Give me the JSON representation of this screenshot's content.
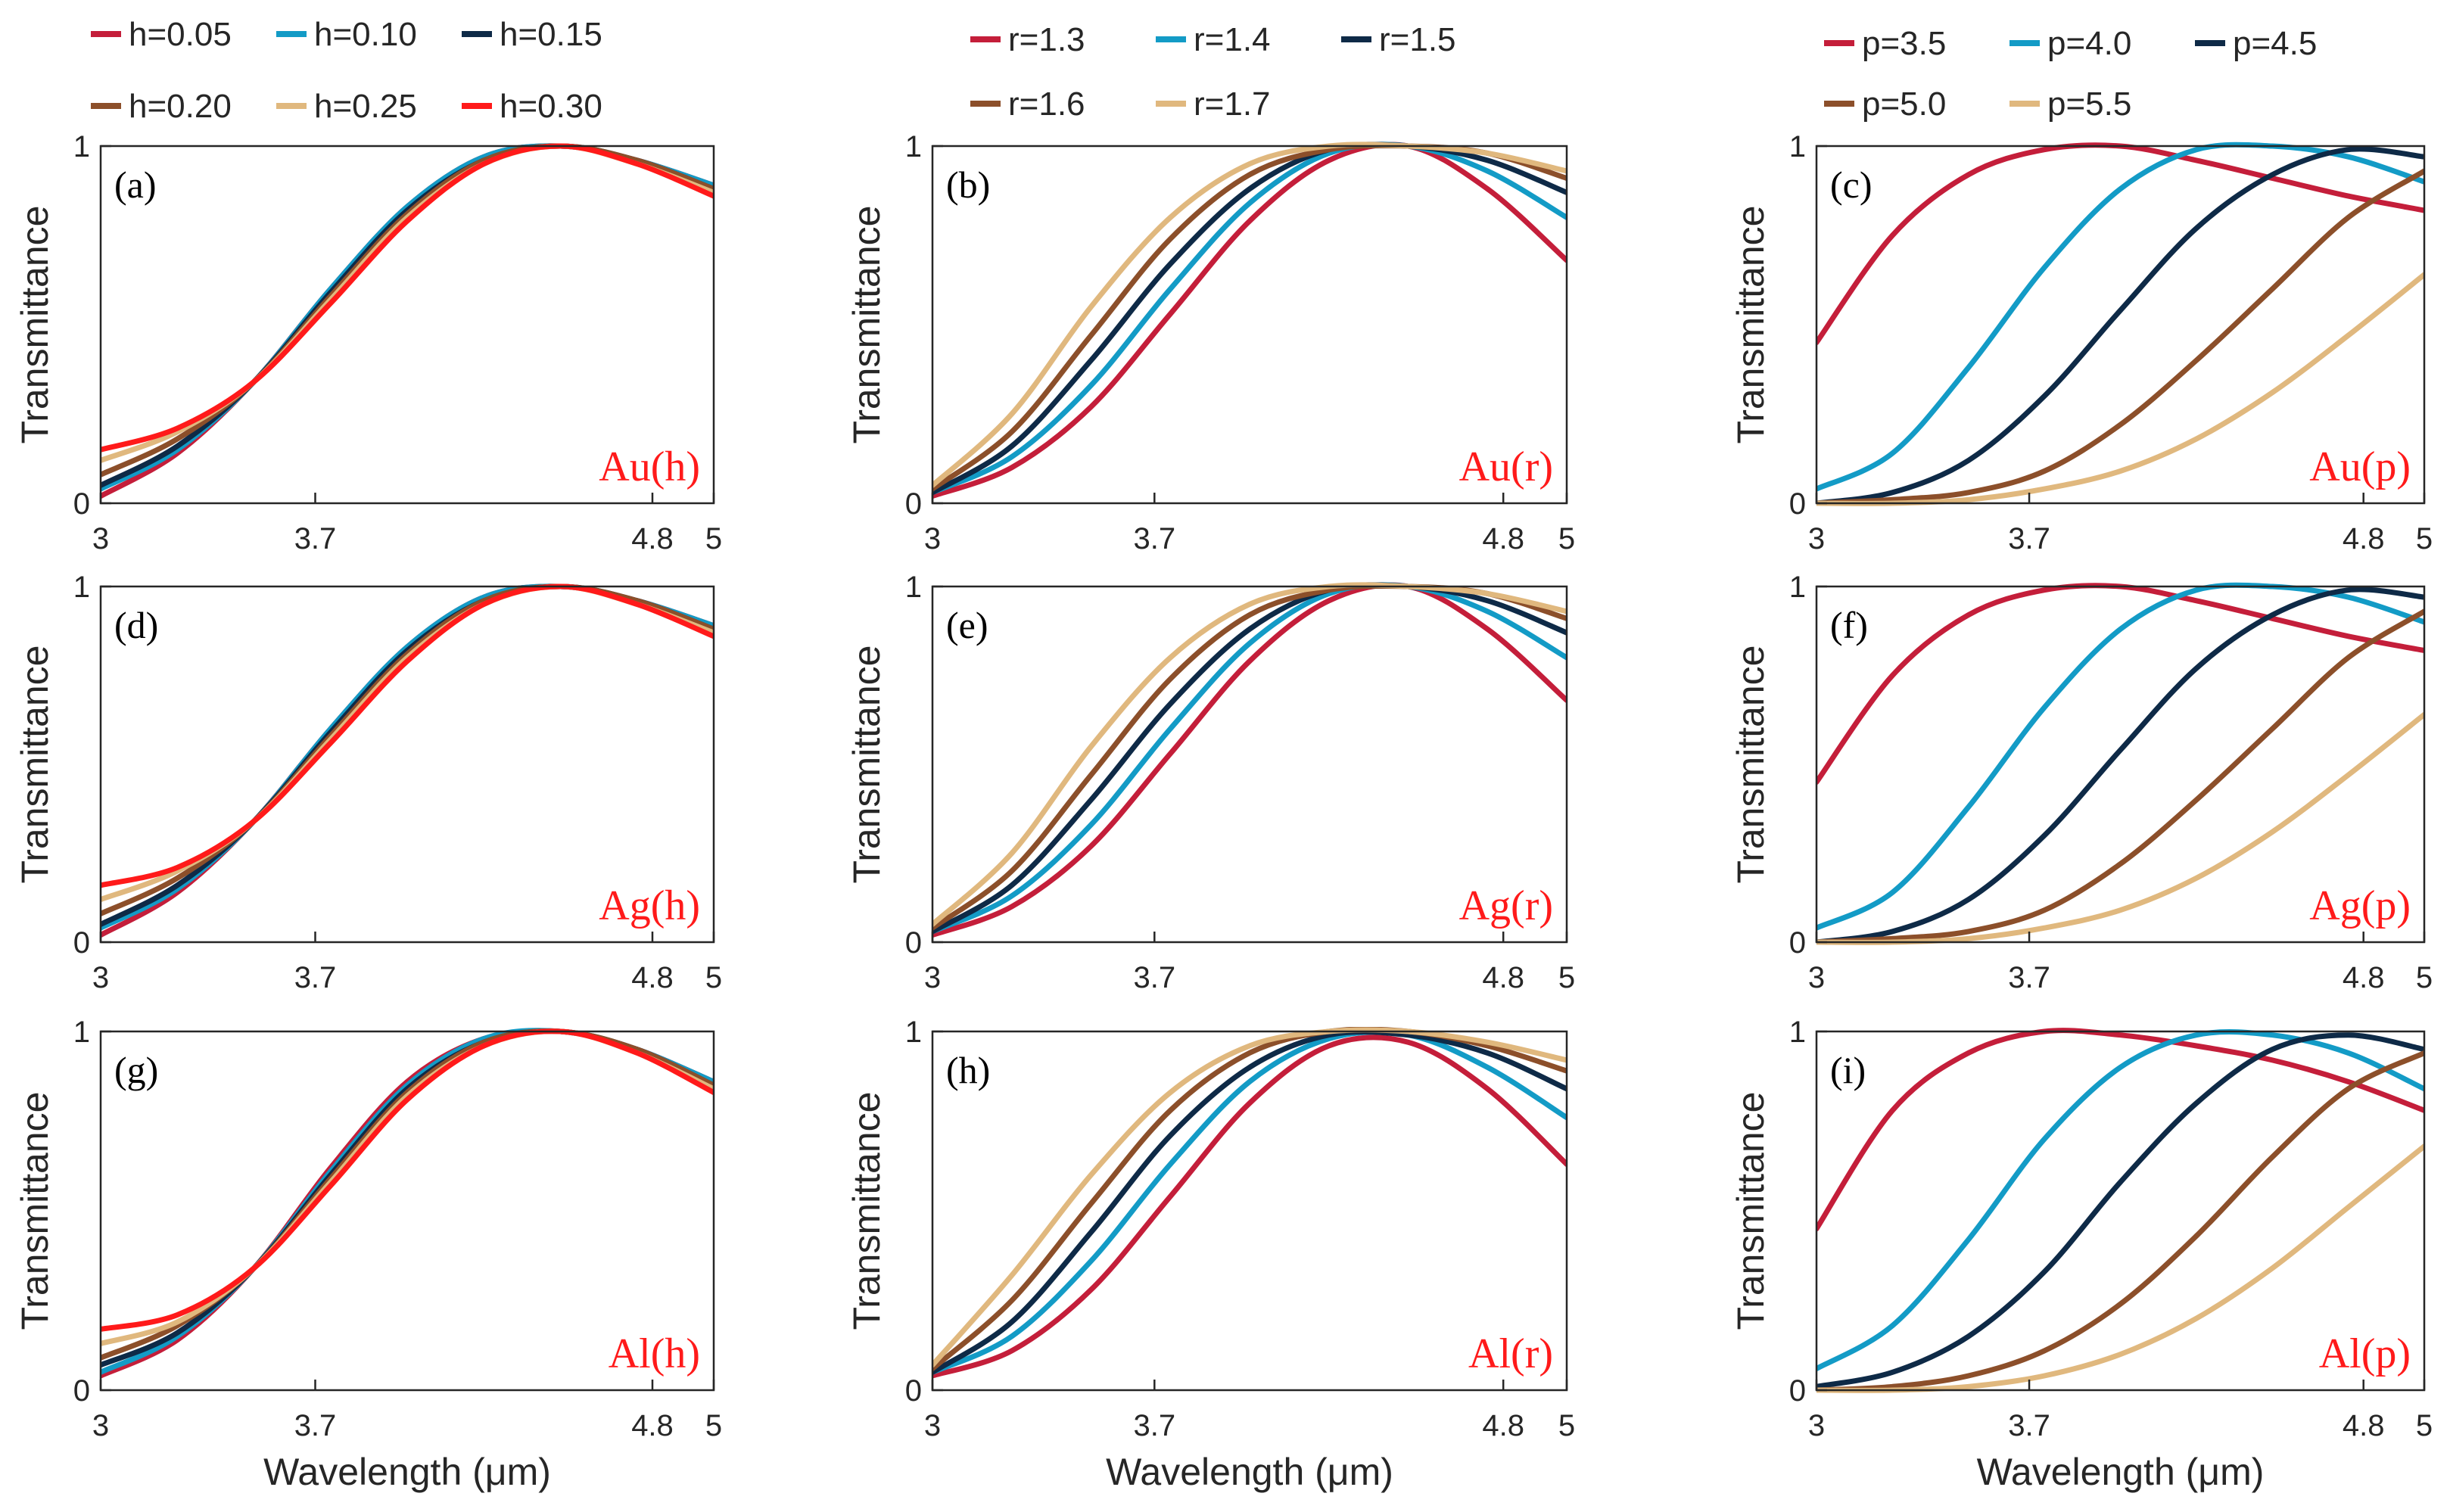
{
  "colors": {
    "red": "#C41E3A",
    "blue": "#139BC6",
    "navy": "#0E2A47",
    "brown": "#8C4F2A",
    "tan": "#E0B87E",
    "bright": "#FF1A1A",
    "tag": "#FF1A1A"
  },
  "legends": [
    {
      "items": [
        {
          "label": "h=0.05",
          "color": "#C41E3A"
        },
        {
          "label": "h=0.10",
          "color": "#139BC6"
        },
        {
          "label": "h=0.15",
          "color": "#0E2A47"
        },
        {
          "label": "h=0.20",
          "color": "#8C4F2A"
        },
        {
          "label": "h=0.25",
          "color": "#E0B87E"
        },
        {
          "label": "h=0.30",
          "color": "#FF1A1A"
        }
      ]
    },
    {
      "items": [
        {
          "label": "r=1.3",
          "color": "#C41E3A"
        },
        {
          "label": "r=1.4",
          "color": "#139BC6"
        },
        {
          "label": "r=1.5",
          "color": "#0E2A47"
        },
        {
          "label": "r=1.6",
          "color": "#8C4F2A"
        },
        {
          "label": "r=1.7",
          "color": "#E0B87E"
        }
      ]
    },
    {
      "items": [
        {
          "label": "p=3.5",
          "color": "#C41E3A"
        },
        {
          "label": "p=4.0",
          "color": "#139BC6"
        },
        {
          "label": "p=4.5",
          "color": "#0E2A47"
        },
        {
          "label": "p=5.0",
          "color": "#8C4F2A"
        },
        {
          "label": "p=5.5",
          "color": "#E0B87E"
        }
      ]
    }
  ],
  "axis": {
    "ylabel": "Transmittance",
    "xlabel": "Wavelength (μm)",
    "xticks": [
      "3",
      "3.7",
      "4.8",
      "5"
    ],
    "yticks": [
      "0",
      "1"
    ],
    "xlim": [
      3,
      5
    ],
    "ylim": [
      0,
      1
    ]
  },
  "chart_data": [
    {
      "type": "line",
      "panel": "(a)",
      "tag": "Au(h)",
      "x": [
        3.0,
        3.25,
        3.5,
        3.75,
        4.0,
        4.25,
        4.5,
        4.75,
        5.0
      ],
      "series": [
        {
          "name": "h=0.05",
          "values": [
            0.02,
            0.14,
            0.34,
            0.6,
            0.83,
            0.97,
            1.0,
            0.96,
            0.89
          ]
        },
        {
          "name": "h=0.10",
          "values": [
            0.04,
            0.15,
            0.34,
            0.6,
            0.83,
            0.97,
            1.0,
            0.96,
            0.89
          ]
        },
        {
          "name": "h=0.15",
          "values": [
            0.05,
            0.16,
            0.34,
            0.59,
            0.82,
            0.96,
            1.0,
            0.96,
            0.88
          ]
        },
        {
          "name": "h=0.20",
          "values": [
            0.08,
            0.18,
            0.34,
            0.58,
            0.81,
            0.96,
            1.0,
            0.96,
            0.88
          ]
        },
        {
          "name": "h=0.25",
          "values": [
            0.12,
            0.2,
            0.34,
            0.57,
            0.8,
            0.95,
            1.0,
            0.95,
            0.87
          ]
        },
        {
          "name": "h=0.30",
          "values": [
            0.15,
            0.21,
            0.34,
            0.56,
            0.79,
            0.95,
            1.0,
            0.95,
            0.86
          ]
        }
      ]
    },
    {
      "type": "line",
      "panel": "(b)",
      "tag": "Au(r)",
      "x": [
        3.0,
        3.25,
        3.5,
        3.75,
        4.0,
        4.25,
        4.5,
        4.75,
        5.0
      ],
      "series": [
        {
          "name": "r=1.3",
          "values": [
            0.02,
            0.1,
            0.27,
            0.53,
            0.79,
            0.96,
            1.0,
            0.88,
            0.68
          ]
        },
        {
          "name": "r=1.4",
          "values": [
            0.03,
            0.13,
            0.33,
            0.6,
            0.84,
            0.98,
            1.0,
            0.93,
            0.8
          ]
        },
        {
          "name": "r=1.5",
          "values": [
            0.03,
            0.16,
            0.4,
            0.67,
            0.88,
            0.99,
            1.0,
            0.96,
            0.87
          ]
        },
        {
          "name": "r=1.6",
          "values": [
            0.04,
            0.2,
            0.47,
            0.74,
            0.92,
            0.99,
            1.0,
            0.98,
            0.91
          ]
        },
        {
          "name": "r=1.7",
          "values": [
            0.05,
            0.25,
            0.55,
            0.8,
            0.95,
            1.0,
            1.0,
            0.98,
            0.93
          ]
        }
      ]
    },
    {
      "type": "line",
      "panel": "(c)",
      "tag": "Au(p)",
      "x": [
        3.0,
        3.25,
        3.5,
        3.75,
        4.0,
        4.25,
        4.5,
        4.75,
        5.0
      ],
      "series": [
        {
          "name": "p=3.5",
          "values": [
            0.45,
            0.75,
            0.92,
            0.99,
            1.0,
            0.96,
            0.91,
            0.86,
            0.82
          ]
        },
        {
          "name": "p=4.0",
          "values": [
            0.04,
            0.14,
            0.38,
            0.66,
            0.88,
            0.99,
            1.0,
            0.97,
            0.9
          ]
        },
        {
          "name": "p=4.5",
          "values": [
            0.0,
            0.03,
            0.12,
            0.3,
            0.54,
            0.77,
            0.92,
            0.99,
            0.97
          ]
        },
        {
          "name": "p=5.0",
          "values": [
            0.0,
            0.01,
            0.03,
            0.09,
            0.22,
            0.4,
            0.6,
            0.8,
            0.93
          ]
        },
        {
          "name": "p=5.5",
          "values": [
            0.0,
            0.0,
            0.01,
            0.04,
            0.09,
            0.18,
            0.31,
            0.47,
            0.64
          ]
        }
      ]
    },
    {
      "type": "line",
      "panel": "(d)",
      "tag": "Ag(h)",
      "x": [
        3.0,
        3.25,
        3.5,
        3.75,
        4.0,
        4.25,
        4.5,
        4.75,
        5.0
      ],
      "series": [
        {
          "name": "h=0.05",
          "values": [
            0.02,
            0.14,
            0.34,
            0.6,
            0.83,
            0.97,
            1.0,
            0.96,
            0.89
          ]
        },
        {
          "name": "h=0.10",
          "values": [
            0.04,
            0.15,
            0.34,
            0.6,
            0.83,
            0.97,
            1.0,
            0.96,
            0.89
          ]
        },
        {
          "name": "h=0.15",
          "values": [
            0.05,
            0.16,
            0.34,
            0.59,
            0.82,
            0.96,
            1.0,
            0.96,
            0.88
          ]
        },
        {
          "name": "h=0.20",
          "values": [
            0.08,
            0.18,
            0.34,
            0.58,
            0.81,
            0.96,
            1.0,
            0.96,
            0.88
          ]
        },
        {
          "name": "h=0.25",
          "values": [
            0.12,
            0.2,
            0.34,
            0.57,
            0.8,
            0.95,
            1.0,
            0.95,
            0.87
          ]
        },
        {
          "name": "h=0.30",
          "values": [
            0.16,
            0.21,
            0.34,
            0.56,
            0.79,
            0.95,
            1.0,
            0.95,
            0.86
          ]
        }
      ]
    },
    {
      "type": "line",
      "panel": "(e)",
      "tag": "Ag(r)",
      "x": [
        3.0,
        3.25,
        3.5,
        3.75,
        4.0,
        4.25,
        4.5,
        4.75,
        5.0
      ],
      "series": [
        {
          "name": "r=1.3",
          "values": [
            0.02,
            0.1,
            0.27,
            0.53,
            0.79,
            0.96,
            1.0,
            0.88,
            0.68
          ]
        },
        {
          "name": "r=1.4",
          "values": [
            0.03,
            0.13,
            0.33,
            0.6,
            0.84,
            0.98,
            1.0,
            0.93,
            0.8
          ]
        },
        {
          "name": "r=1.5",
          "values": [
            0.03,
            0.16,
            0.4,
            0.67,
            0.88,
            0.99,
            1.0,
            0.96,
            0.87
          ]
        },
        {
          "name": "r=1.6",
          "values": [
            0.04,
            0.2,
            0.47,
            0.74,
            0.92,
            0.99,
            1.0,
            0.98,
            0.91
          ]
        },
        {
          "name": "r=1.7",
          "values": [
            0.05,
            0.25,
            0.55,
            0.8,
            0.95,
            1.0,
            1.0,
            0.98,
            0.93
          ]
        }
      ]
    },
    {
      "type": "line",
      "panel": "(f)",
      "tag": "Ag(p)",
      "x": [
        3.0,
        3.25,
        3.5,
        3.75,
        4.0,
        4.25,
        4.5,
        4.75,
        5.0
      ],
      "series": [
        {
          "name": "p=3.5",
          "values": [
            0.45,
            0.75,
            0.92,
            0.99,
            1.0,
            0.96,
            0.91,
            0.86,
            0.82
          ]
        },
        {
          "name": "p=4.0",
          "values": [
            0.04,
            0.14,
            0.38,
            0.66,
            0.88,
            0.99,
            1.0,
            0.97,
            0.9
          ]
        },
        {
          "name": "p=4.5",
          "values": [
            0.0,
            0.03,
            0.12,
            0.3,
            0.54,
            0.77,
            0.92,
            0.99,
            0.97
          ]
        },
        {
          "name": "p=5.0",
          "values": [
            0.0,
            0.01,
            0.03,
            0.09,
            0.22,
            0.4,
            0.6,
            0.8,
            0.93
          ]
        },
        {
          "name": "p=5.5",
          "values": [
            0.0,
            0.0,
            0.01,
            0.04,
            0.09,
            0.18,
            0.31,
            0.47,
            0.64
          ]
        }
      ]
    },
    {
      "type": "line",
      "panel": "(g)",
      "tag": "Al(h)",
      "x": [
        3.0,
        3.25,
        3.5,
        3.75,
        4.0,
        4.25,
        4.5,
        4.75,
        5.0
      ],
      "series": [
        {
          "name": "h=0.05",
          "values": [
            0.04,
            0.14,
            0.34,
            0.62,
            0.86,
            0.98,
            1.0,
            0.95,
            0.86
          ]
        },
        {
          "name": "h=0.10",
          "values": [
            0.05,
            0.15,
            0.34,
            0.61,
            0.85,
            0.98,
            1.0,
            0.95,
            0.86
          ]
        },
        {
          "name": "h=0.15",
          "values": [
            0.07,
            0.16,
            0.34,
            0.6,
            0.84,
            0.97,
            1.0,
            0.95,
            0.85
          ]
        },
        {
          "name": "h=0.20",
          "values": [
            0.09,
            0.18,
            0.34,
            0.59,
            0.83,
            0.97,
            1.0,
            0.95,
            0.85
          ]
        },
        {
          "name": "h=0.25",
          "values": [
            0.13,
            0.19,
            0.34,
            0.58,
            0.82,
            0.96,
            1.0,
            0.94,
            0.84
          ]
        },
        {
          "name": "h=0.30",
          "values": [
            0.17,
            0.21,
            0.34,
            0.57,
            0.81,
            0.96,
            1.0,
            0.94,
            0.83
          ]
        }
      ]
    },
    {
      "type": "line",
      "panel": "(h)",
      "tag": "Al(r)",
      "x": [
        3.0,
        3.25,
        3.5,
        3.75,
        4.0,
        4.25,
        4.5,
        4.75,
        5.0
      ],
      "series": [
        {
          "name": "r=1.3",
          "values": [
            0.04,
            0.11,
            0.28,
            0.54,
            0.8,
            0.96,
            0.97,
            0.84,
            0.63
          ]
        },
        {
          "name": "r=1.4",
          "values": [
            0.05,
            0.15,
            0.36,
            0.63,
            0.86,
            0.98,
            0.99,
            0.9,
            0.76
          ]
        },
        {
          "name": "r=1.5",
          "values": [
            0.05,
            0.19,
            0.44,
            0.71,
            0.9,
            0.99,
            0.99,
            0.94,
            0.84
          ]
        },
        {
          "name": "r=1.6",
          "values": [
            0.06,
            0.25,
            0.52,
            0.78,
            0.94,
            1.0,
            1.0,
            0.96,
            0.89
          ]
        },
        {
          "name": "r=1.7",
          "values": [
            0.07,
            0.32,
            0.6,
            0.83,
            0.96,
            1.0,
            1.0,
            0.97,
            0.92
          ]
        }
      ]
    },
    {
      "type": "line",
      "panel": "(i)",
      "tag": "Al(p)",
      "x": [
        3.0,
        3.25,
        3.5,
        3.75,
        4.0,
        4.25,
        4.5,
        4.75,
        5.0
      ],
      "series": [
        {
          "name": "p=3.5",
          "values": [
            0.45,
            0.78,
            0.94,
            1.0,
            0.99,
            0.96,
            0.92,
            0.86,
            0.78
          ]
        },
        {
          "name": "p=4.0",
          "values": [
            0.06,
            0.18,
            0.42,
            0.7,
            0.9,
            0.99,
            0.99,
            0.94,
            0.84
          ]
        },
        {
          "name": "p=4.5",
          "values": [
            0.01,
            0.05,
            0.15,
            0.33,
            0.58,
            0.8,
            0.95,
            0.99,
            0.95
          ]
        },
        {
          "name": "p=5.0",
          "values": [
            0.0,
            0.01,
            0.04,
            0.11,
            0.24,
            0.43,
            0.65,
            0.84,
            0.94
          ]
        },
        {
          "name": "p=5.5",
          "values": [
            0.0,
            0.0,
            0.01,
            0.04,
            0.1,
            0.2,
            0.34,
            0.51,
            0.68
          ]
        }
      ]
    }
  ]
}
